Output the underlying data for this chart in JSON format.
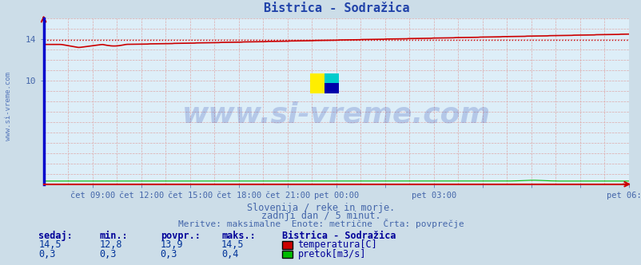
{
  "title": "Bistrica - Sodražica",
  "bg_color": "#ccdde8",
  "plot_bg_color": "#ddeef8",
  "title_color": "#2244aa",
  "axis_label_color": "#4466aa",
  "text_color": "#4466aa",
  "watermark": "www.si-vreme.com",
  "subtitle1": "Slovenija / reke in morje.",
  "subtitle2": "zadnji dan / 5 minut.",
  "subtitle3": "Meritve: maksimalne  Enote: metrične  Črta: povprečje",
  "xlim_start": 0,
  "xlim_end": 288,
  "ylim": [
    0,
    16
  ],
  "temp_avg": 13.9,
  "temp_color": "#cc0000",
  "flow_color": "#00bb00",
  "avg_line_color": "#cc0000",
  "stats_header_color": "#000099",
  "stats_value_color": "#003399",
  "legend_label1": "temperatura[C]",
  "legend_label2": "pretok[m3/s]",
  "sedaj_label": "sedaj:",
  "min_label": "min.:",
  "povpr_label": "povpr.:",
  "maks_label": "maks.:",
  "station_label": "Bistrica - Sodražica",
  "sedaj_temp": "14,5",
  "min_temp": "12,8",
  "povpr_temp": "13,9",
  "maks_temp": "14,5",
  "sedaj_flow": "0,3",
  "min_flow": "0,3",
  "povpr_flow": "0,3",
  "maks_flow": "0,4"
}
